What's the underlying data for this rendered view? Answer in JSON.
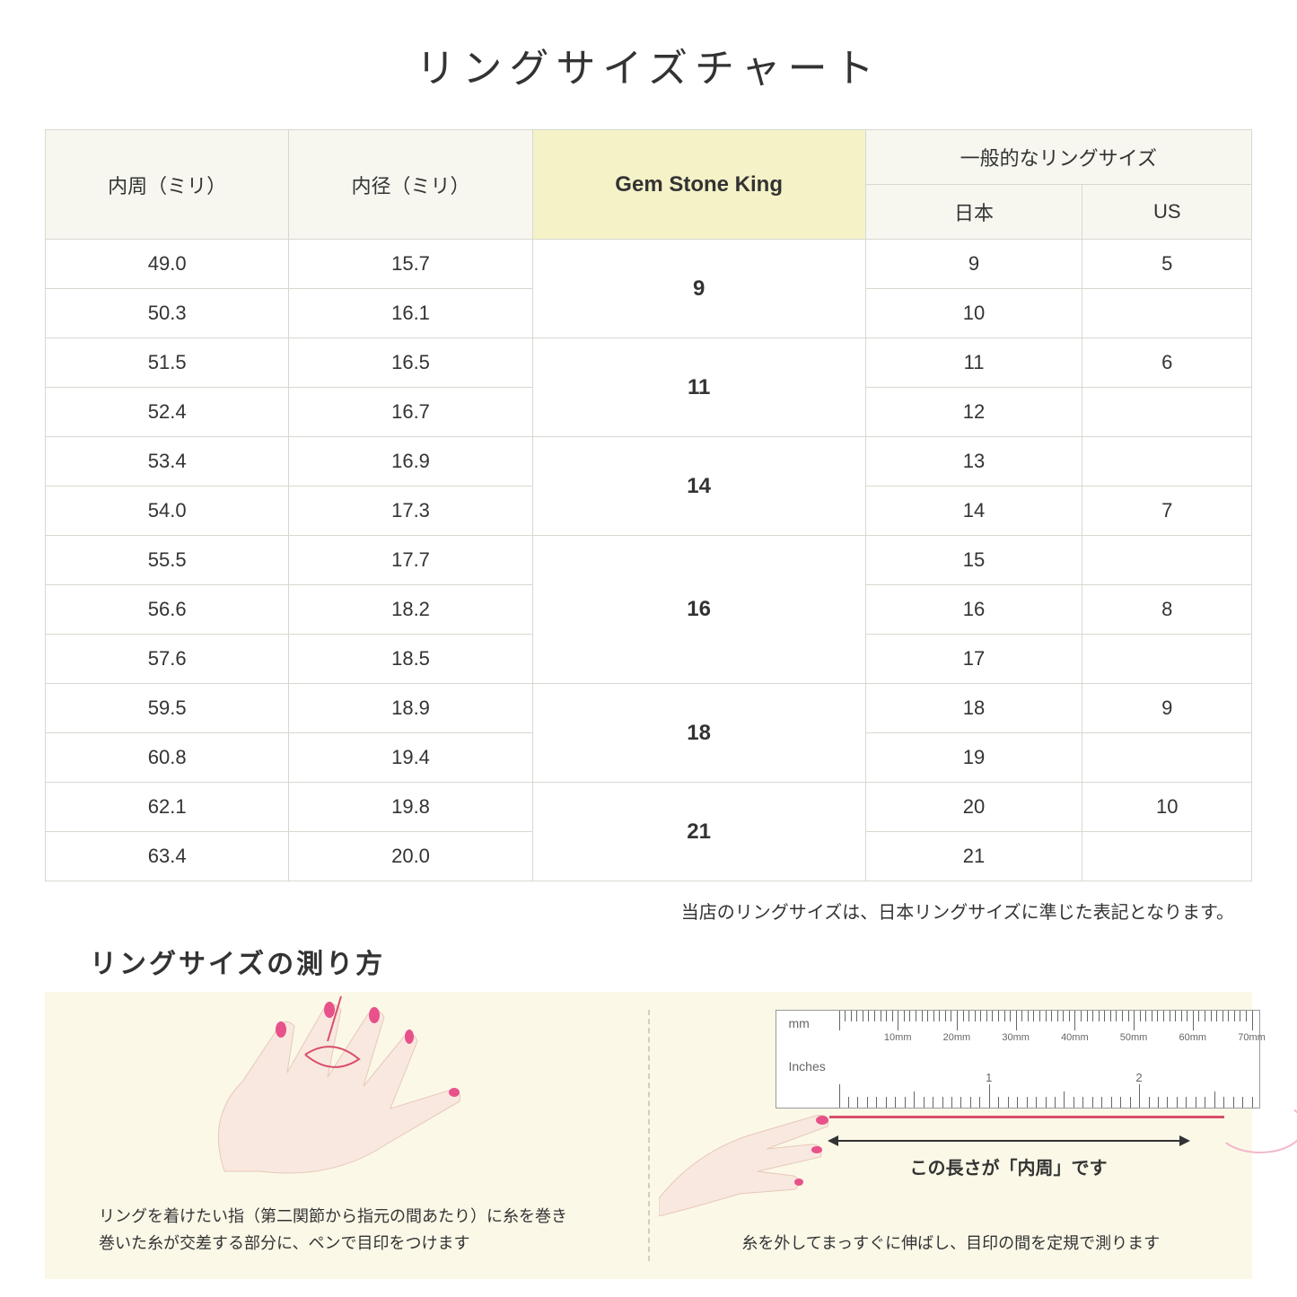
{
  "title": "リングサイズチャート",
  "table": {
    "headers": {
      "circumference": "内周（ミリ）",
      "diameter": "内径（ミリ）",
      "gsk": "Gem Stone King",
      "common": "一般的なリングサイズ",
      "jp": "日本",
      "us": "US"
    },
    "groups": [
      {
        "gsk": "9",
        "rows": [
          {
            "c": "49.0",
            "d": "15.7",
            "jp": "9",
            "us": "5"
          },
          {
            "c": "50.3",
            "d": "16.1",
            "jp": "10",
            "us": ""
          }
        ]
      },
      {
        "gsk": "11",
        "rows": [
          {
            "c": "51.5",
            "d": "16.5",
            "jp": "11",
            "us": "6"
          },
          {
            "c": "52.4",
            "d": "16.7",
            "jp": "12",
            "us": ""
          }
        ]
      },
      {
        "gsk": "14",
        "rows": [
          {
            "c": "53.4",
            "d": "16.9",
            "jp": "13",
            "us": ""
          },
          {
            "c": "54.0",
            "d": "17.3",
            "jp": "14",
            "us": "7"
          }
        ]
      },
      {
        "gsk": "16",
        "rows": [
          {
            "c": "55.5",
            "d": "17.7",
            "jp": "15",
            "us": ""
          },
          {
            "c": "56.6",
            "d": "18.2",
            "jp": "16",
            "us": "8"
          },
          {
            "c": "57.6",
            "d": "18.5",
            "jp": "17",
            "us": ""
          }
        ]
      },
      {
        "gsk": "18",
        "rows": [
          {
            "c": "59.5",
            "d": "18.9",
            "jp": "18",
            "us": "9"
          },
          {
            "c": "60.8",
            "d": "19.4",
            "jp": "19",
            "us": ""
          }
        ]
      },
      {
        "gsk": "21",
        "rows": [
          {
            "c": "62.1",
            "d": "19.8",
            "jp": "20",
            "us": "10"
          },
          {
            "c": "63.4",
            "d": "20.0",
            "jp": "21",
            "us": ""
          }
        ]
      }
    ]
  },
  "note": "当店のリングサイズは、日本リングサイズに準じた表記となります。",
  "measure": {
    "title": "リングサイズの測り方",
    "left_caption": "リングを着けたい指（第二関節から指元の間あたり）に糸を巻き\n巻いた糸が交差する部分に、ペンで目印をつけます",
    "right_caption": "糸を外してまっすぐに伸ばし、目印の間を定規で測ります",
    "ruler_mm": "mm",
    "ruler_in": "Inches",
    "ruler_mm_labels": [
      "10mm",
      "20mm",
      "30mm",
      "40mm",
      "50mm",
      "60mm",
      "70mm"
    ],
    "ruler_in_labels": [
      "1",
      "2"
    ],
    "arrow_label": "この長さが「内周」です"
  },
  "colors": {
    "header_bg": "#f7f7f0",
    "gsk_bg": "#f5f2c8",
    "border": "#d8d8d0",
    "guide_bg": "#fbf8e8",
    "skin": "#f8e8e0",
    "nail": "#e8518a",
    "thread": "#d94f6a"
  }
}
